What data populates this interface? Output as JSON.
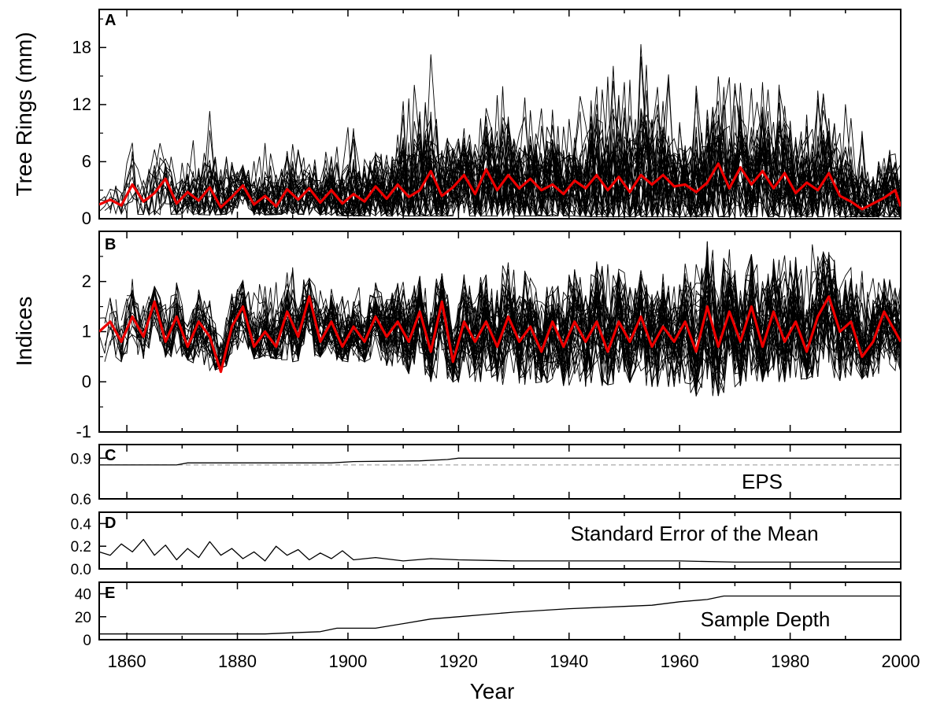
{
  "chart_data": [
    {
      "panel": "A",
      "type": "line",
      "ylabel": "Tree Rings (mm)",
      "xlim": [
        1855,
        2000
      ],
      "ylim": [
        0,
        22
      ],
      "yticks": [
        0,
        6,
        12,
        18
      ],
      "grid": false,
      "series": [
        {
          "role": "mean chronology",
          "color": "#ee0000",
          "x": [
            1855,
            1857,
            1859,
            1861,
            1863,
            1865,
            1867,
            1869,
            1871,
            1873,
            1875,
            1877,
            1879,
            1881,
            1883,
            1885,
            1887,
            1889,
            1891,
            1893,
            1895,
            1897,
            1899,
            1901,
            1903,
            1905,
            1907,
            1909,
            1911,
            1913,
            1915,
            1917,
            1919,
            1921,
            1923,
            1925,
            1927,
            1929,
            1931,
            1933,
            1935,
            1937,
            1939,
            1941,
            1943,
            1945,
            1947,
            1949,
            1951,
            1953,
            1955,
            1957,
            1959,
            1961,
            1963,
            1965,
            1967,
            1969,
            1971,
            1973,
            1975,
            1977,
            1979,
            1981,
            1983,
            1985,
            1987,
            1989,
            1991,
            1993,
            1995,
            1997,
            1999,
            2000
          ],
          "values": [
            1.5,
            2.0,
            1.4,
            3.6,
            1.8,
            2.7,
            4.2,
            1.6,
            2.8,
            1.9,
            3.3,
            1.2,
            2.3,
            3.5,
            1.5,
            2.4,
            1.3,
            3.1,
            2.0,
            3.2,
            1.7,
            3.0,
            1.6,
            2.6,
            1.8,
            3.4,
            2.1,
            3.6,
            2.3,
            3.0,
            5.0,
            2.4,
            3.3,
            4.6,
            2.6,
            5.2,
            3.0,
            4.6,
            3.2,
            4.2,
            3.0,
            3.6,
            2.6,
            4.0,
            3.2,
            4.6,
            3.0,
            4.4,
            2.8,
            4.6,
            3.6,
            4.6,
            3.4,
            3.6,
            2.8,
            3.8,
            5.8,
            3.2,
            5.4,
            3.6,
            5.0,
            3.2,
            4.8,
            2.7,
            3.8,
            3.0,
            4.8,
            2.4,
            1.8,
            1.0,
            1.6,
            2.2,
            3.0,
            1.3
          ]
        },
        {
          "role": "individual tree-ring series (envelope of individual series)",
          "color": "#000000",
          "x": [
            1855,
            1860,
            1865,
            1870,
            1875,
            1880,
            1885,
            1890,
            1895,
            1900,
            1905,
            1910,
            1915,
            1920,
            1925,
            1930,
            1935,
            1940,
            1945,
            1950,
            1955,
            1960,
            1965,
            1970,
            1975,
            1980,
            1985,
            1990,
            1995,
            2000
          ],
          "max": [
            3.0,
            8.0,
            11.0,
            7.0,
            12.0,
            5.0,
            8.0,
            8.0,
            7.0,
            10.0,
            8.0,
            13.0,
            18.0,
            9.0,
            14.0,
            14.0,
            12.0,
            12.0,
            16.0,
            17.0,
            21.0,
            13.0,
            17.0,
            15.0,
            16.0,
            13.0,
            14.0,
            13.0,
            8.0,
            11.0
          ],
          "min": [
            0.6,
            0.5,
            0.4,
            0.5,
            0.4,
            0.5,
            0.4,
            0.5,
            0.4,
            0.3,
            0.3,
            0.3,
            0.3,
            0.3,
            0.3,
            0.3,
            0.3,
            0.3,
            0.2,
            0.2,
            0.2,
            0.2,
            0.2,
            0.2,
            0.2,
            0.2,
            0.2,
            0.2,
            0.2,
            0.2
          ],
          "count": 40
        }
      ]
    },
    {
      "panel": "B",
      "type": "line",
      "ylabel": "Indices",
      "xlim": [
        1855,
        2000
      ],
      "ylim": [
        -1,
        3
      ],
      "yticks": [
        -1,
        0,
        1,
        2
      ],
      "grid": false,
      "series": [
        {
          "role": "mean index chronology",
          "color": "#ee0000",
          "x": [
            1855,
            1857,
            1859,
            1861,
            1863,
            1865,
            1867,
            1869,
            1871,
            1873,
            1875,
            1877,
            1879,
            1881,
            1883,
            1885,
            1887,
            1889,
            1891,
            1893,
            1895,
            1897,
            1899,
            1901,
            1903,
            1905,
            1907,
            1909,
            1911,
            1913,
            1915,
            1917,
            1919,
            1921,
            1923,
            1925,
            1927,
            1929,
            1931,
            1933,
            1935,
            1937,
            1939,
            1941,
            1943,
            1945,
            1947,
            1949,
            1951,
            1953,
            1955,
            1957,
            1959,
            1961,
            1963,
            1965,
            1967,
            1969,
            1971,
            1973,
            1975,
            1977,
            1979,
            1981,
            1983,
            1985,
            1987,
            1989,
            1991,
            1993,
            1995,
            1997,
            1999,
            2000
          ],
          "values": [
            1.0,
            1.2,
            0.8,
            1.3,
            0.9,
            1.6,
            0.8,
            1.3,
            0.7,
            1.2,
            0.9,
            0.2,
            1.1,
            1.5,
            0.7,
            1.0,
            0.7,
            1.4,
            0.9,
            1.7,
            0.8,
            1.2,
            0.7,
            1.1,
            0.8,
            1.3,
            0.9,
            1.2,
            0.8,
            1.4,
            0.6,
            1.6,
            0.4,
            1.2,
            0.8,
            1.2,
            0.7,
            1.3,
            0.8,
            1.1,
            0.6,
            1.2,
            0.7,
            1.2,
            0.8,
            1.2,
            0.6,
            1.2,
            0.8,
            1.3,
            0.7,
            1.1,
            0.8,
            1.2,
            0.6,
            1.5,
            0.7,
            1.4,
            0.8,
            1.5,
            0.7,
            1.4,
            0.8,
            1.2,
            0.6,
            1.3,
            1.7,
            1.0,
            1.2,
            0.5,
            0.8,
            1.4,
            1.0,
            0.8
          ]
        },
        {
          "role": "individual index series (envelope of individual series)",
          "color": "#000000",
          "x": [
            1855,
            1860,
            1865,
            1870,
            1875,
            1880,
            1885,
            1890,
            1895,
            1900,
            1905,
            1910,
            1915,
            1920,
            1925,
            1930,
            1935,
            1940,
            1945,
            1950,
            1955,
            1960,
            1965,
            1970,
            1975,
            1980,
            1985,
            1990,
            1995,
            2000
          ],
          "max": [
            1.8,
            2.1,
            1.9,
            2.0,
            1.8,
            2.0,
            2.1,
            2.3,
            1.9,
            1.9,
            2.0,
            2.1,
            2.2,
            2.1,
            2.3,
            2.4,
            2.1,
            2.2,
            2.4,
            2.3,
            2.3,
            2.3,
            2.8,
            2.6,
            2.5,
            2.6,
            2.9,
            2.4,
            2.1,
            2.0
          ],
          "min": [
            0.4,
            0.4,
            0.5,
            0.5,
            0.2,
            0.4,
            0.5,
            0.4,
            0.5,
            0.4,
            0.4,
            0.2,
            0.0,
            0.0,
            0.0,
            -0.1,
            0.0,
            -0.1,
            -0.1,
            0.0,
            -0.1,
            -0.1,
            -0.4,
            -0.1,
            0.0,
            0.0,
            0.1,
            0.0,
            0.1,
            0.2
          ],
          "count": 40
        }
      ]
    },
    {
      "panel": "C",
      "type": "line",
      "annotation": "EPS",
      "xlim": [
        1855,
        2000
      ],
      "ylim": [
        0.6,
        1.0
      ],
      "yticks": [
        0.6,
        0.9
      ],
      "grid": false,
      "reference_line": {
        "value": 0.85,
        "style": "dashed",
        "color": "#aaaaaa"
      },
      "series": [
        {
          "role": "EPS",
          "color": "#000000",
          "x": [
            1855,
            1869,
            1871,
            1897,
            1901,
            1913,
            1918,
            1920,
            2000
          ],
          "values": [
            0.85,
            0.85,
            0.865,
            0.865,
            0.875,
            0.88,
            0.89,
            0.9,
            0.9
          ]
        }
      ]
    },
    {
      "panel": "D",
      "type": "line",
      "annotation": "Standard Error of the Mean",
      "xlim": [
        1855,
        2000
      ],
      "ylim": [
        0.0,
        0.5
      ],
      "yticks": [
        0.0,
        0.2,
        0.4
      ],
      "grid": false,
      "series": [
        {
          "role": "standard error of the mean",
          "color": "#000000",
          "x": [
            1855,
            1857,
            1859,
            1861,
            1863,
            1865,
            1867,
            1869,
            1871,
            1873,
            1875,
            1877,
            1879,
            1881,
            1883,
            1885,
            1887,
            1889,
            1891,
            1893,
            1895,
            1897,
            1899,
            1901,
            1905,
            1910,
            1915,
            1920,
            1930,
            1940,
            1950,
            1960,
            1970,
            1980,
            1990,
            2000
          ],
          "values": [
            0.15,
            0.12,
            0.22,
            0.15,
            0.26,
            0.12,
            0.21,
            0.08,
            0.18,
            0.1,
            0.24,
            0.12,
            0.18,
            0.09,
            0.15,
            0.07,
            0.2,
            0.12,
            0.17,
            0.08,
            0.14,
            0.09,
            0.16,
            0.08,
            0.1,
            0.07,
            0.09,
            0.08,
            0.07,
            0.07,
            0.07,
            0.07,
            0.06,
            0.06,
            0.06,
            0.06
          ]
        }
      ]
    },
    {
      "panel": "E",
      "type": "line",
      "annotation": "Sample Depth",
      "xlabel": "Year",
      "xlim": [
        1855,
        2000
      ],
      "xticks": [
        1860,
        1880,
        1900,
        1920,
        1940,
        1960,
        1980,
        2000
      ],
      "ylim": [
        0,
        50
      ],
      "yticks": [
        0,
        20,
        40
      ],
      "grid": false,
      "series": [
        {
          "role": "sample depth",
          "color": "#000000",
          "x": [
            1855,
            1885,
            1890,
            1895,
            1898,
            1905,
            1910,
            1915,
            1920,
            1925,
            1930,
            1940,
            1950,
            1955,
            1960,
            1965,
            1968,
            2000
          ],
          "values": [
            5,
            5,
            6,
            7,
            10,
            10,
            14,
            18,
            20,
            22,
            24,
            27,
            29,
            30,
            33,
            35,
            38,
            38
          ]
        }
      ]
    }
  ]
}
